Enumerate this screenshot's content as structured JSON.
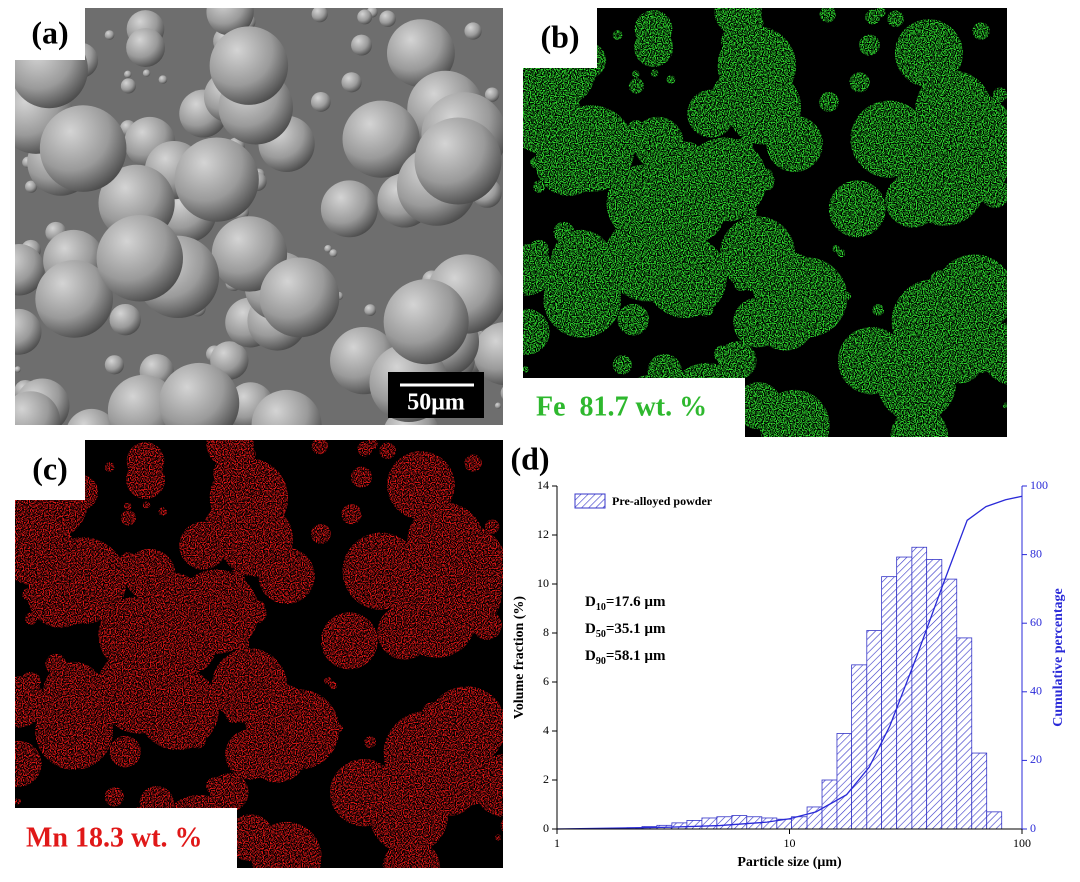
{
  "panels": {
    "a": {
      "label": "(a)",
      "scale_bar": "50μm"
    },
    "b": {
      "label": "(b)",
      "caption": "Fe  81.7 wt. %"
    },
    "c": {
      "label": "(c)",
      "caption": "Mn 18.3 wt. %"
    },
    "d": {
      "label": "(d)"
    }
  },
  "chart_data": {
    "type": "histogram",
    "xlabel": "Particle size (μm)",
    "ylabel": "Volume fraction (%)",
    "y2label": "Cumulative percentage",
    "xlog": true,
    "xlim": [
      1,
      100
    ],
    "xticks": [
      1,
      10,
      100
    ],
    "ylim": [
      0,
      14
    ],
    "yticks": [
      0,
      2,
      4,
      6,
      8,
      10,
      12,
      14
    ],
    "y2lim": [
      0,
      100
    ],
    "y2ticks": [
      0,
      20,
      40,
      60,
      80,
      100
    ],
    "legend": "upper left",
    "bins": [
      2.0,
      2.32,
      2.69,
      3.12,
      3.62,
      4.2,
      4.87,
      5.65,
      6.55,
      7.6,
      8.82,
      10.2,
      11.9,
      13.8,
      16.0,
      18.5,
      21.5,
      24.9,
      28.9,
      33.6,
      38.9,
      45.2,
      52.4,
      60.8,
      70.5,
      81.8
    ],
    "series": [
      {
        "name": "Pre-alloyed powder",
        "color": "#3535c8",
        "hatch": true,
        "values": [
          0.05,
          0.1,
          0.15,
          0.25,
          0.35,
          0.45,
          0.5,
          0.55,
          0.5,
          0.45,
          0.4,
          0.5,
          0.9,
          2.0,
          3.9,
          6.7,
          8.1,
          10.3,
          11.1,
          11.5,
          11.0,
          10.2,
          7.8,
          3.1,
          0.7
        ]
      }
    ],
    "line": {
      "axis": "y2",
      "color": "#2a2ad8",
      "x": [
        1,
        3,
        5,
        8,
        10,
        13,
        17.6,
        22,
        27,
        35.1,
        45,
        58.1,
        70,
        85,
        100
      ],
      "values": [
        0,
        0.5,
        1,
        2,
        3,
        5,
        10,
        18,
        30,
        50,
        70,
        90,
        94,
        96,
        97
      ]
    },
    "annotations": [
      {
        "symbol": "D",
        "subscript": "10",
        "text": "=17.6 µm"
      },
      {
        "symbol": "D",
        "subscript": "50",
        "text": "=35.1 µm"
      },
      {
        "symbol": "D",
        "subscript": "90",
        "text": "=58.1 µm"
      }
    ]
  }
}
